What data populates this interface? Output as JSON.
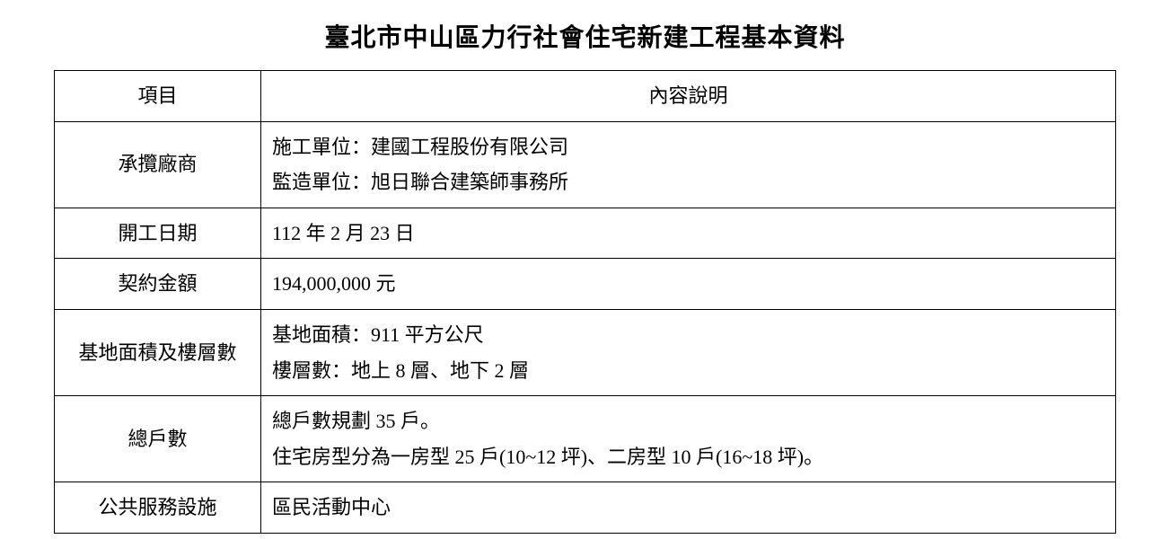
{
  "title": "臺北市中山區力行社會住宅新建工程基本資料",
  "table": {
    "header": {
      "col1": "項目",
      "col2": "內容說明"
    },
    "rows": [
      {
        "label": "承攬廠商",
        "content": "施工單位：建國工程股份有限公司\n監造單位：旭日聯合建築師事務所"
      },
      {
        "label": "開工日期",
        "content": "112 年 2 月 23 日"
      },
      {
        "label": "契約金額",
        "content": "194,000,000  元"
      },
      {
        "label": "基地面積及樓層數",
        "content": "基地面積：911 平方公尺\n樓層數：地上 8 層、地下 2 層"
      },
      {
        "label": "總戶數",
        "content": "總戶數規劃 35 戶。\n住宅房型分為一房型 25 戶(10~12 坪)、二房型 10 戶(16~18 坪)。"
      },
      {
        "label": "公共服務設施",
        "content": "區民活動中心"
      }
    ]
  },
  "styling": {
    "title_fontsize": 28,
    "title_weight": "bold",
    "body_fontsize": 22,
    "border_color": "#000000",
    "background_color": "#ffffff",
    "text_color": "#000000",
    "col1_width": 230,
    "line_height": 1.8
  }
}
